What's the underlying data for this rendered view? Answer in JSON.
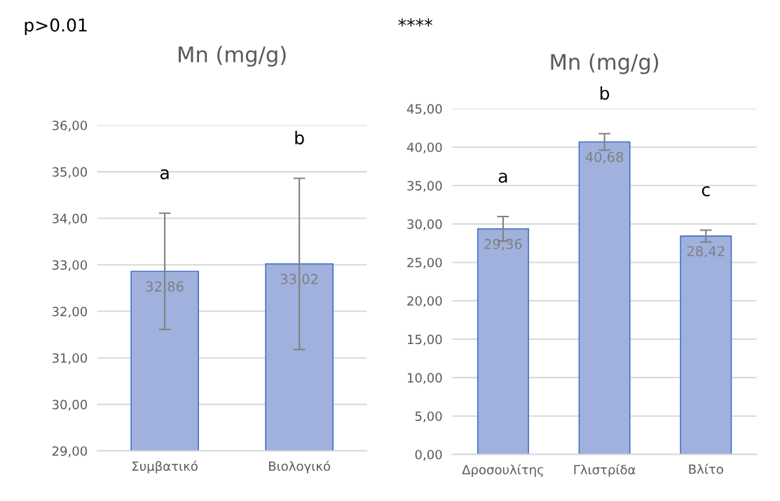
{
  "chart_data": [
    {
      "type": "bar",
      "title": "Mn (mg/g)",
      "categories": [
        "Συμβατικό",
        "Βιολογικό"
      ],
      "values": [
        32.86,
        33.02
      ],
      "errors": [
        1.25,
        1.84
      ],
      "value_labels": [
        "32,86",
        "33,02"
      ],
      "color": "#a0b1dd",
      "ylim": [
        29,
        36
      ],
      "yticks": [
        {
          "value": 29,
          "label": "29,00"
        },
        {
          "value": 30,
          "label": "30,00"
        },
        {
          "value": 31,
          "label": "31,00"
        },
        {
          "value": 32,
          "label": "32,00"
        },
        {
          "value": 33,
          "label": "33,00"
        },
        {
          "value": 34,
          "label": "34,00"
        },
        {
          "value": 35,
          "label": "35,00"
        },
        {
          "value": 36,
          "label": "36,00"
        }
      ],
      "grid": "y",
      "legend": false,
      "annotations": [
        "p>0.01",
        "a",
        "b"
      ]
    },
    {
      "type": "bar",
      "title": "Mn (mg/g)",
      "categories": [
        "Δροσουλίτης",
        "Γλιστρίδα",
        "Βλίτο"
      ],
      "values": [
        29.36,
        40.68,
        28.42
      ],
      "errors": [
        1.6,
        1.07,
        0.77
      ],
      "value_labels": [
        "29,36",
        "40,68",
        "28,42"
      ],
      "color": "#a0b1dd",
      "ylim": [
        0,
        45
      ],
      "yticks": [
        {
          "value": 0,
          "label": "0,00"
        },
        {
          "value": 5,
          "label": "5,00"
        },
        {
          "value": 10,
          "label": "10,00"
        },
        {
          "value": 15,
          "label": "15,00"
        },
        {
          "value": 20,
          "label": "20,00"
        },
        {
          "value": 25,
          "label": "25,00"
        },
        {
          "value": 30,
          "label": "30,00"
        },
        {
          "value": 35,
          "label": "35,00"
        },
        {
          "value": 40,
          "label": "40,00"
        },
        {
          "value": 45,
          "label": "45,00"
        }
      ],
      "grid": "y",
      "legend": false,
      "annotations": [
        "****",
        "a",
        "b",
        "c"
      ]
    }
  ]
}
